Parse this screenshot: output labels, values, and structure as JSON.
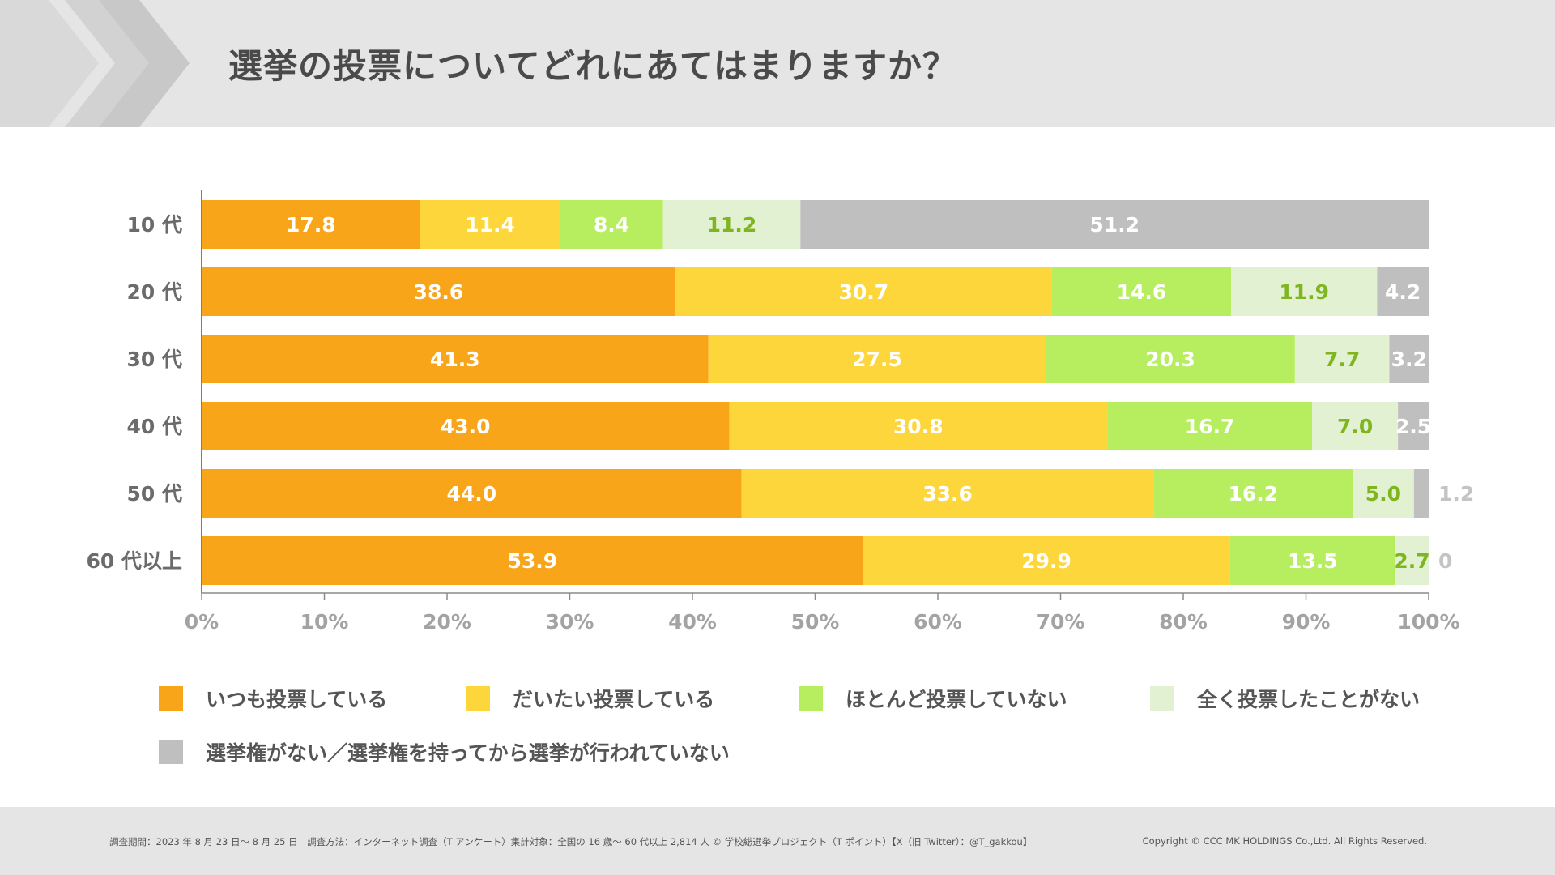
{
  "header": {
    "title": "選挙の投票についてどれにあてはまりますか？"
  },
  "colors": {
    "series": [
      "#f9a51a",
      "#fdd63b",
      "#b7ee5f",
      "#e2f1d2",
      "#bfbfbf"
    ],
    "header_bg": "#e5e5e5",
    "chevron": "#cfcfcf"
  },
  "chart_data": {
    "type": "bar",
    "orientation": "horizontal",
    "stacked": true,
    "categories": [
      "10 代",
      "20 代",
      "30 代",
      "40 代",
      "50 代",
      "60 代以上"
    ],
    "series": [
      {
        "name": "いつも投票している",
        "values": [
          17.8,
          38.6,
          41.3,
          43.0,
          44.0,
          53.9
        ],
        "labels": [
          "17.8",
          "38.6",
          "41.3",
          "43.0",
          "44.0",
          "53.9"
        ]
      },
      {
        "name": "だいたい投票している",
        "values": [
          11.4,
          30.7,
          27.5,
          30.8,
          33.6,
          29.9
        ],
        "labels": [
          "11.4",
          "30.7",
          "27.5",
          "30.8",
          "33.6",
          "29.9"
        ]
      },
      {
        "name": "ほとんど投票していない",
        "values": [
          8.4,
          14.6,
          20.3,
          16.7,
          16.2,
          13.5
        ],
        "labels": [
          "8.4",
          "14.6",
          "20.3",
          "16.7",
          "16.2",
          "13.5"
        ]
      },
      {
        "name": "全く投票したことがない",
        "values": [
          11.2,
          11.9,
          7.7,
          7.0,
          5.0,
          2.7
        ],
        "labels": [
          "11.2",
          "11.9",
          "7.7",
          "7.0",
          "5.0",
          "2.7"
        ]
      },
      {
        "name": "選挙権がない／選挙権を持ってから選挙が行われていない",
        "values": [
          51.2,
          4.2,
          3.2,
          2.5,
          1.2,
          0
        ],
        "labels": [
          "51.2",
          "4.2",
          "3.2",
          "2.5",
          "1.2",
          "0"
        ]
      }
    ],
    "xlim": [
      0,
      100
    ],
    "xticks": [
      "0%",
      "10%",
      "20%",
      "30%",
      "40%",
      "50%",
      "60%",
      "70%",
      "80%",
      "90%",
      "100%"
    ],
    "legend_position": "bottom"
  },
  "footer": {
    "note": "調査期間：2023 年 8 月 23 日～ 8 月 25 日　調査方法：インターネット調査（T アンケート）集計対象：全国の 16 歳～ 60 代以上 2,814 人 © 学校総選挙プロジェクト（T ポイント）【X（旧 Twitter）：@T_gakkou】",
    "copyright": "Copyright © CCC MK HOLDINGS Co.,Ltd. All Rights Reserved."
  }
}
